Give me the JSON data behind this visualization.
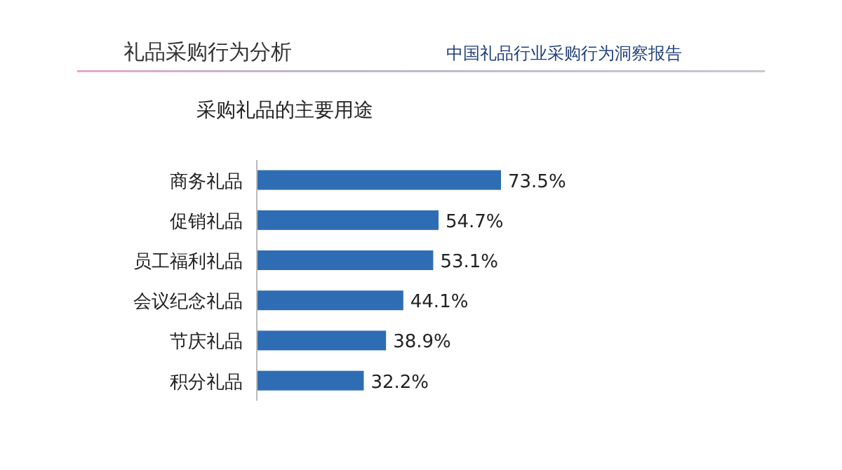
{
  "chart_data": {
    "type": "bar",
    "orientation": "horizontal",
    "title": "采购礼品的主要用途",
    "annotations": [
      "礼品采购行为分析",
      "中国礼品行业采购行为洞察报告"
    ],
    "categories": [
      "商务礼品",
      "促销礼品",
      "员工福利礼品",
      "会议纪念礼品",
      "节庆礼品",
      "积分礼品"
    ],
    "values": [
      73.5,
      54.7,
      53.1,
      44.1,
      38.9,
      32.2
    ],
    "value_labels": [
      "73.5%",
      "54.7%",
      "53.1%",
      "44.1%",
      "38.9%",
      "32.2%"
    ],
    "color": "#2e6db4"
  }
}
